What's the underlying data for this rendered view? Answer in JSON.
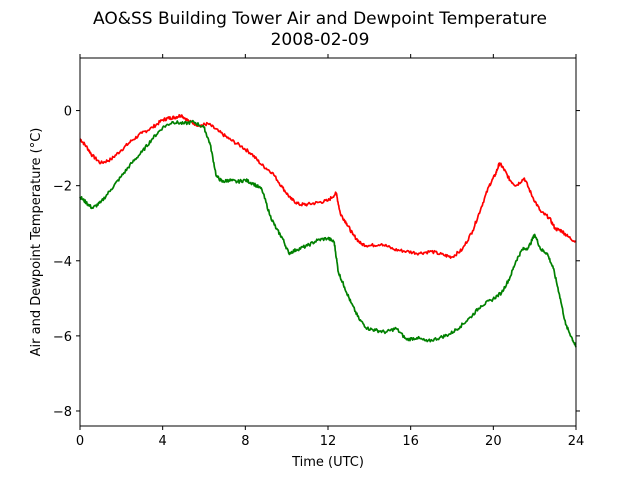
{
  "chart_data": {
    "type": "line",
    "title": "AO&SS Building Tower Air and Dewpoint Temperature",
    "subtitle": "2008-02-09",
    "xlabel": "Time (UTC)",
    "ylabel": "Air and Dewpoint Temperature (°C)",
    "xlim": [
      0,
      24
    ],
    "ylim": [
      -8.4,
      1.4
    ],
    "xticks": [
      0,
      4,
      8,
      12,
      16,
      20,
      24
    ],
    "yticks": [
      -8,
      -6,
      -4,
      -2,
      0
    ],
    "grid": false,
    "legend": "none",
    "series": [
      {
        "color": "#ff0000",
        "x": [
          0,
          0.3,
          0.6,
          1.0,
          1.5,
          2.0,
          2.5,
          3.0,
          3.5,
          4.0,
          4.3,
          4.6,
          4.9,
          5.3,
          5.8,
          6.2,
          6.7,
          7.2,
          7.8,
          8.3,
          8.8,
          9.3,
          9.8,
          10.2,
          10.6,
          11.0,
          11.5,
          12.0,
          12.4,
          12.6,
          12.9,
          13.2,
          13.6,
          14.0,
          14.6,
          15.2,
          15.8,
          16.4,
          17.0,
          17.6,
          18.0,
          18.5,
          19.0,
          19.4,
          19.8,
          20.1,
          20.3,
          20.5,
          20.8,
          21.1,
          21.5,
          21.9,
          22.3,
          22.7,
          23.0,
          23.3,
          23.6,
          24.0
        ],
        "values": [
          -0.75,
          -0.95,
          -1.2,
          -1.4,
          -1.3,
          -1.05,
          -0.8,
          -0.6,
          -0.45,
          -0.25,
          -0.2,
          -0.18,
          -0.12,
          -0.3,
          -0.4,
          -0.35,
          -0.55,
          -0.75,
          -0.95,
          -1.15,
          -1.45,
          -1.65,
          -2.05,
          -2.35,
          -2.5,
          -2.5,
          -2.45,
          -2.4,
          -2.2,
          -2.75,
          -3.0,
          -3.3,
          -3.55,
          -3.6,
          -3.55,
          -3.7,
          -3.75,
          -3.8,
          -3.75,
          -3.85,
          -3.9,
          -3.7,
          -3.2,
          -2.6,
          -2.0,
          -1.7,
          -1.4,
          -1.55,
          -1.85,
          -2.0,
          -1.8,
          -2.3,
          -2.7,
          -2.85,
          -3.15,
          -3.2,
          -3.35,
          -3.5
        ]
      },
      {
        "color": "#008000",
        "x": [
          0,
          0.3,
          0.6,
          1.0,
          1.5,
          2.0,
          2.5,
          3.0,
          3.5,
          4.0,
          4.5,
          5.0,
          5.5,
          6.0,
          6.3,
          6.6,
          6.9,
          7.2,
          7.6,
          8.0,
          8.4,
          8.8,
          9.2,
          9.5,
          9.8,
          10.1,
          10.5,
          11.0,
          11.5,
          12.0,
          12.3,
          12.5,
          12.8,
          13.1,
          13.5,
          13.9,
          14.3,
          14.8,
          15.3,
          15.8,
          16.3,
          16.8,
          17.4,
          17.9,
          18.4,
          18.9,
          19.4,
          19.9,
          20.4,
          20.8,
          21.1,
          21.4,
          21.7,
          22.0,
          22.3,
          22.6,
          22.9,
          23.2,
          23.5,
          23.8,
          24.0
        ],
        "values": [
          -2.3,
          -2.45,
          -2.6,
          -2.45,
          -2.1,
          -1.75,
          -1.4,
          -1.1,
          -0.75,
          -0.45,
          -0.3,
          -0.35,
          -0.3,
          -0.45,
          -0.9,
          -1.75,
          -1.9,
          -1.85,
          -1.9,
          -1.85,
          -1.95,
          -2.1,
          -2.8,
          -3.15,
          -3.4,
          -3.8,
          -3.7,
          -3.6,
          -3.45,
          -3.4,
          -3.5,
          -4.3,
          -4.7,
          -5.1,
          -5.55,
          -5.8,
          -5.85,
          -5.9,
          -5.8,
          -6.1,
          -6.05,
          -6.15,
          -6.05,
          -5.95,
          -5.75,
          -5.5,
          -5.2,
          -5.05,
          -4.85,
          -4.45,
          -4.0,
          -3.7,
          -3.65,
          -3.3,
          -3.7,
          -3.8,
          -4.2,
          -4.9,
          -5.7,
          -6.05,
          -6.3
        ]
      }
    ]
  }
}
